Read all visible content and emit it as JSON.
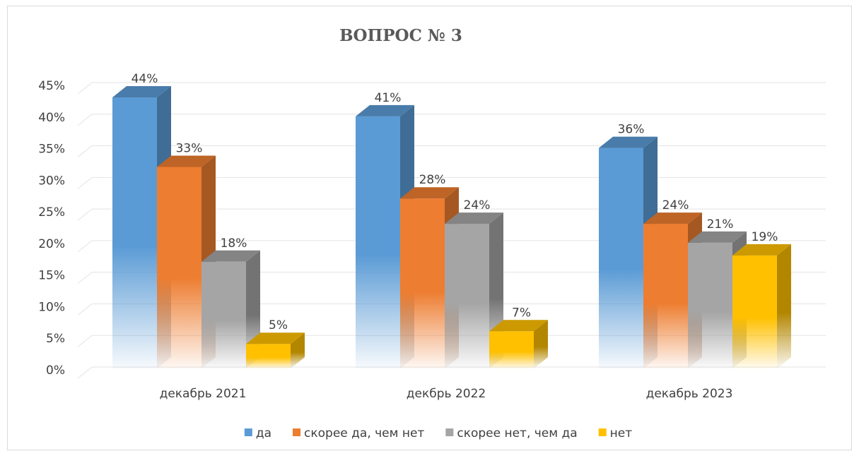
{
  "chart_data": {
    "type": "bar3d",
    "title": "ВОПРОС № 3",
    "categories": [
      "декабрь 2021",
      "декбрь 2022",
      "декабрь 2023"
    ],
    "series": [
      {
        "name": "да",
        "color": "#5b9bd5",
        "values": [
          44,
          41,
          36
        ],
        "value_labels": [
          "44%",
          "41%",
          "36%"
        ]
      },
      {
        "name": "скорее да, чем нет",
        "color": "#ed7d31",
        "values": [
          33,
          28,
          24
        ],
        "value_labels": [
          "33%",
          "28%",
          "24%"
        ]
      },
      {
        "name": "скорее нет, чем да",
        "color": "#a5a5a5",
        "values": [
          18,
          24,
          21
        ],
        "value_labels": [
          "18%",
          "24%",
          "21%"
        ]
      },
      {
        "name": "нет",
        "color": "#ffc000",
        "values": [
          5,
          7,
          19
        ],
        "value_labels": [
          "5%",
          "7%",
          "19%"
        ]
      }
    ],
    "ylim": [
      0,
      45
    ],
    "yticks": [
      {
        "value": 0,
        "label": "0%"
      },
      {
        "value": 5,
        "label": "5%"
      },
      {
        "value": 10,
        "label": "10%"
      },
      {
        "value": 15,
        "label": "15%"
      },
      {
        "value": 20,
        "label": "20%"
      },
      {
        "value": 25,
        "label": "25%"
      },
      {
        "value": 30,
        "label": "30%"
      },
      {
        "value": 35,
        "label": "35%"
      },
      {
        "value": 40,
        "label": "40%"
      },
      {
        "value": 45,
        "label": "45%"
      }
    ],
    "grid": true,
    "legend": "bottom"
  }
}
